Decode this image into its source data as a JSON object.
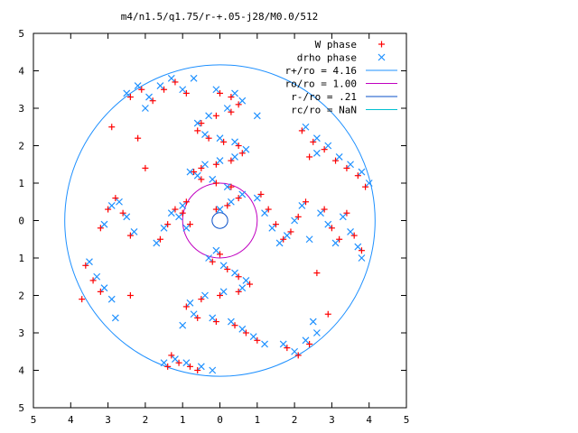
{
  "chart_data": {
    "type": "scatter",
    "title": "m4/n1.5/q1.75/r-+.05-j28/M0.0/512",
    "xlabel": "",
    "ylabel": "",
    "xlim": [
      -5,
      5
    ],
    "ylim": [
      -5,
      5
    ],
    "x_ticks": [
      "5",
      "4",
      "3",
      "2",
      "1",
      "0",
      "1",
      "2",
      "3",
      "4",
      "5"
    ],
    "y_ticks": [
      "5",
      "4",
      "3",
      "2",
      "1",
      "0",
      "1",
      "2",
      "3",
      "4",
      "5"
    ],
    "grid": false,
    "legend_position": "top-right",
    "legend": [
      {
        "label": "W phase",
        "kind": "point",
        "marker": "plus",
        "color": "#ff0000"
      },
      {
        "label": "drho phase",
        "kind": "point",
        "marker": "x",
        "color": "#1e90ff"
      },
      {
        "label": "r+/ro = 4.16",
        "kind": "circle",
        "radius": 4.16,
        "color": "#1e90ff"
      },
      {
        "label": "ro/ro = 1.00",
        "kind": "circle",
        "radius": 1.0,
        "color": "#c000c0"
      },
      {
        "label": "r-/ro = .21",
        "kind": "circle",
        "radius": 0.21,
        "color": "#0a50c8"
      },
      {
        "label": "rc/ro = NaN",
        "kind": "circle",
        "radius": null,
        "color": "#00c0d0"
      }
    ],
    "series": [
      {
        "name": "W phase",
        "marker": "plus",
        "color": "#ff0000",
        "points": [
          [
            0.0,
            3.4
          ],
          [
            0.3,
            3.3
          ],
          [
            0.5,
            3.1
          ],
          [
            0.3,
            2.9
          ],
          [
            -0.1,
            2.8
          ],
          [
            -0.5,
            2.6
          ],
          [
            -0.6,
            2.4
          ],
          [
            -0.3,
            2.2
          ],
          [
            0.1,
            2.1
          ],
          [
            0.5,
            2.0
          ],
          [
            0.6,
            1.8
          ],
          [
            0.3,
            1.6
          ],
          [
            -0.1,
            1.5
          ],
          [
            -0.5,
            1.4
          ],
          [
            -0.7,
            1.3
          ],
          [
            -0.5,
            1.1
          ],
          [
            -0.1,
            1.0
          ],
          [
            0.3,
            0.9
          ],
          [
            0.5,
            0.6
          ],
          [
            0.2,
            0.4
          ],
          [
            -0.1,
            0.3
          ],
          [
            0.0,
            -0.9
          ],
          [
            -0.2,
            -1.1
          ],
          [
            0.2,
            -1.3
          ],
          [
            0.5,
            -1.5
          ],
          [
            0.8,
            -1.7
          ],
          [
            0.5,
            -1.9
          ],
          [
            0.0,
            -2.0
          ],
          [
            -0.5,
            -2.1
          ],
          [
            -0.9,
            -2.3
          ],
          [
            -0.6,
            -2.6
          ],
          [
            -0.1,
            -2.7
          ],
          [
            0.4,
            -2.8
          ],
          [
            0.7,
            -3.0
          ],
          [
            1.0,
            -3.2
          ],
          [
            -1.6,
            -0.5
          ],
          [
            -1.4,
            -0.1
          ],
          [
            -1.2,
            0.3
          ],
          [
            -1.0,
            0.2
          ],
          [
            -0.8,
            -0.1
          ],
          [
            -0.9,
            0.5
          ],
          [
            1.1,
            0.7
          ],
          [
            1.3,
            0.3
          ],
          [
            1.5,
            -0.1
          ],
          [
            1.7,
            -0.5
          ],
          [
            1.9,
            -0.3
          ],
          [
            2.1,
            0.1
          ],
          [
            2.3,
            0.5
          ],
          [
            -3.2,
            -0.2
          ],
          [
            -3.0,
            0.3
          ],
          [
            -2.8,
            0.6
          ],
          [
            -2.6,
            0.2
          ],
          [
            -2.4,
            -0.4
          ],
          [
            -3.6,
            -1.2
          ],
          [
            -3.4,
            -1.6
          ],
          [
            -3.2,
            -1.9
          ],
          [
            -3.7,
            -2.1
          ],
          [
            2.8,
            0.3
          ],
          [
            3.0,
            -0.2
          ],
          [
            3.2,
            -0.5
          ],
          [
            3.4,
            0.2
          ],
          [
            3.6,
            -0.4
          ],
          [
            3.8,
            -0.8
          ],
          [
            2.6,
            -1.4
          ],
          [
            2.9,
            -2.5
          ],
          [
            -2.4,
            3.3
          ],
          [
            -2.1,
            3.5
          ],
          [
            -1.8,
            3.2
          ],
          [
            -1.5,
            3.5
          ],
          [
            -1.2,
            3.7
          ],
          [
            -0.9,
            3.4
          ],
          [
            -2.9,
            2.5
          ],
          [
            -2.2,
            2.2
          ],
          [
            -2.0,
            1.4
          ],
          [
            2.2,
            2.4
          ],
          [
            2.5,
            2.1
          ],
          [
            2.8,
            1.9
          ],
          [
            3.1,
            1.6
          ],
          [
            3.4,
            1.4
          ],
          [
            3.7,
            1.2
          ],
          [
            3.9,
            0.9
          ],
          [
            2.4,
            1.7
          ],
          [
            -1.4,
            -3.9
          ],
          [
            -1.1,
            -3.8
          ],
          [
            -0.8,
            -3.9
          ],
          [
            -0.6,
            -4.0
          ],
          [
            -1.3,
            -3.6
          ],
          [
            1.8,
            -3.4
          ],
          [
            2.1,
            -3.6
          ],
          [
            2.4,
            -3.3
          ],
          [
            -2.4,
            -2.0
          ]
        ]
      },
      {
        "name": "drho phase",
        "marker": "x",
        "color": "#1e90ff",
        "points": [
          [
            -0.1,
            3.5
          ],
          [
            0.4,
            3.4
          ],
          [
            0.6,
            3.2
          ],
          [
            0.2,
            3.0
          ],
          [
            -0.3,
            2.8
          ],
          [
            -0.6,
            2.6
          ],
          [
            -0.4,
            2.3
          ],
          [
            0.0,
            2.2
          ],
          [
            0.4,
            2.1
          ],
          [
            0.7,
            1.9
          ],
          [
            0.4,
            1.7
          ],
          [
            0.0,
            1.6
          ],
          [
            -0.4,
            1.5
          ],
          [
            -0.8,
            1.3
          ],
          [
            -0.6,
            1.2
          ],
          [
            -0.2,
            1.1
          ],
          [
            0.2,
            0.9
          ],
          [
            0.6,
            0.7
          ],
          [
            0.3,
            0.5
          ],
          [
            0.0,
            0.3
          ],
          [
            -0.1,
            -0.8
          ],
          [
            -0.3,
            -1.0
          ],
          [
            0.1,
            -1.2
          ],
          [
            0.4,
            -1.4
          ],
          [
            0.7,
            -1.6
          ],
          [
            0.6,
            -1.8
          ],
          [
            0.1,
            -1.9
          ],
          [
            -0.4,
            -2.0
          ],
          [
            -0.8,
            -2.2
          ],
          [
            -0.7,
            -2.5
          ],
          [
            -0.2,
            -2.6
          ],
          [
            0.3,
            -2.7
          ],
          [
            0.6,
            -2.9
          ],
          [
            0.9,
            -3.1
          ],
          [
            1.2,
            -3.3
          ],
          [
            -1.7,
            -0.6
          ],
          [
            -1.5,
            -0.2
          ],
          [
            -1.3,
            0.2
          ],
          [
            -1.1,
            0.1
          ],
          [
            -0.9,
            -0.2
          ],
          [
            -1.0,
            0.4
          ],
          [
            1.0,
            0.6
          ],
          [
            1.2,
            0.2
          ],
          [
            1.4,
            -0.2
          ],
          [
            1.6,
            -0.6
          ],
          [
            1.8,
            -0.4
          ],
          [
            2.0,
            0.0
          ],
          [
            2.2,
            0.4
          ],
          [
            2.4,
            -0.5
          ],
          [
            -3.1,
            -0.1
          ],
          [
            -2.9,
            0.4
          ],
          [
            -2.7,
            0.5
          ],
          [
            -2.5,
            0.1
          ],
          [
            -2.3,
            -0.3
          ],
          [
            -3.5,
            -1.1
          ],
          [
            -3.3,
            -1.5
          ],
          [
            -3.1,
            -1.8
          ],
          [
            -2.9,
            -2.1
          ],
          [
            2.7,
            0.2
          ],
          [
            2.9,
            -0.1
          ],
          [
            3.1,
            -0.6
          ],
          [
            3.3,
            0.1
          ],
          [
            3.5,
            -0.3
          ],
          [
            3.7,
            -0.7
          ],
          [
            3.8,
            -1.0
          ],
          [
            2.5,
            -2.7
          ],
          [
            -2.5,
            3.4
          ],
          [
            -2.2,
            3.6
          ],
          [
            -1.9,
            3.3
          ],
          [
            -1.6,
            3.6
          ],
          [
            -1.3,
            3.8
          ],
          [
            -1.0,
            3.5
          ],
          [
            -0.7,
            3.8
          ],
          [
            -2.0,
            3.0
          ],
          [
            2.3,
            2.5
          ],
          [
            2.6,
            2.2
          ],
          [
            2.9,
            2.0
          ],
          [
            3.2,
            1.7
          ],
          [
            3.5,
            1.5
          ],
          [
            3.8,
            1.3
          ],
          [
            4.0,
            1.0
          ],
          [
            2.6,
            1.8
          ],
          [
            1.0,
            2.8
          ],
          [
            -1.5,
            -3.8
          ],
          [
            -1.2,
            -3.7
          ],
          [
            -0.9,
            -3.8
          ],
          [
            -0.5,
            -3.9
          ],
          [
            -0.2,
            -4.0
          ],
          [
            1.7,
            -3.3
          ],
          [
            2.0,
            -3.5
          ],
          [
            2.3,
            -3.2
          ],
          [
            2.6,
            -3.0
          ],
          [
            -2.8,
            -2.6
          ],
          [
            -1.0,
            -2.8
          ]
        ]
      }
    ]
  }
}
